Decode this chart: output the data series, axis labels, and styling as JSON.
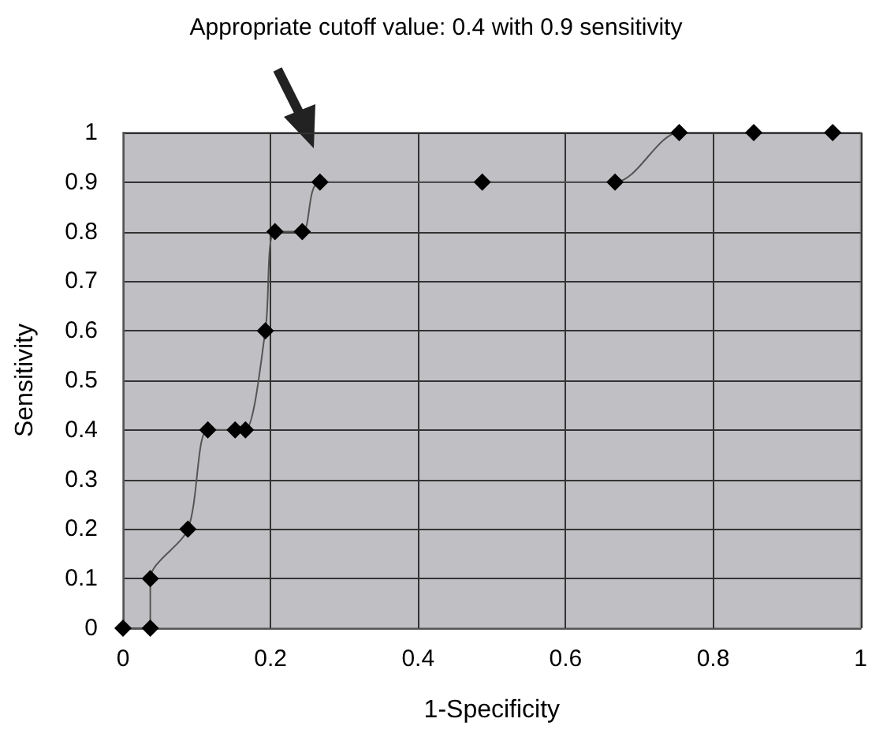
{
  "chart_data": {
    "type": "line",
    "xlabel": "1-Specificity",
    "ylabel": "Sensitivity",
    "annotations": [
      "Appropriate cutoff value: 0.4 with 0.9 sensitivity"
    ],
    "x": [
      0,
      0.037,
      0.037,
      0.088,
      0.115,
      0.152,
      0.166,
      0.193,
      0.206,
      0.243,
      0.267,
      0.487,
      0.667,
      0.754,
      0.855,
      0.962
    ],
    "series": [
      {
        "color": "#000000",
        "values": [
          0,
          0,
          0.1,
          0.2,
          0.4,
          0.4,
          0.4,
          0.6,
          0.8,
          0.8,
          0.9,
          0.9,
          0.9,
          1,
          1,
          1
        ]
      }
    ],
    "xlim": [
      0,
      1
    ],
    "xticks": [
      0,
      0.2,
      0.4,
      0.6,
      0.8,
      1
    ],
    "ylim": [
      0,
      1
    ],
    "yticks": [
      0,
      0.1,
      0.2,
      0.3,
      0.4,
      0.5,
      0.6,
      0.7,
      0.8,
      0.9,
      1
    ],
    "grid": true,
    "marker": "diamond",
    "line_style": "solid"
  }
}
